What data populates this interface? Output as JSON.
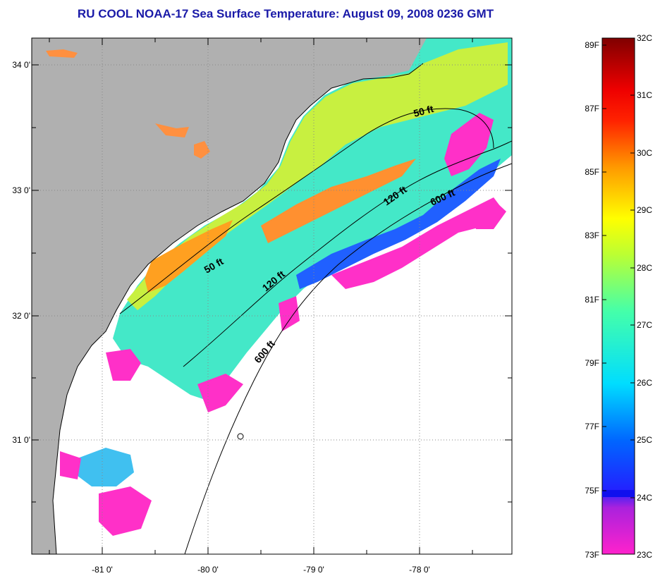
{
  "title": "RU COOL  NOAA-17  Sea Surface Temperature:  August 09, 2008 0236 GMT",
  "axes": {
    "lon_ticks": [
      "-81 0'",
      "-80 0'",
      "-79 0'",
      "-78 0'"
    ],
    "lat_ticks": [
      "34 0'",
      "33 0'",
      "32 0'",
      "31 0'"
    ]
  },
  "contour_labels": {
    "fifty_north": "50 ft",
    "fifty_south": "50 ft",
    "onetwenty_north": "120 ft",
    "onetwenty_south": "120 ft",
    "sixhundred_north": "600 ft",
    "sixhundred_south": "600 ft"
  },
  "colorbar": {
    "fahrenheit": [
      "89F",
      "87F",
      "85F",
      "83F",
      "81F",
      "79F",
      "77F",
      "75F",
      "73F"
    ],
    "celsius": [
      "32C",
      "31C",
      "30C",
      "29C",
      "28C",
      "27C",
      "26C",
      "25C",
      "24C",
      "23C"
    ],
    "gradient": [
      "#ff22cc",
      "#aa22dd",
      "#2222ff",
      "#0066ff",
      "#00ddff",
      "#44ffaa",
      "#bbff33",
      "#ffff00",
      "#ff9900",
      "#ff2200",
      "#ee0000",
      "#800000"
    ]
  },
  "colors": {
    "land": "#b0b0b0",
    "water_nodata": "#ffffff",
    "title": "#1a1aa8"
  }
}
